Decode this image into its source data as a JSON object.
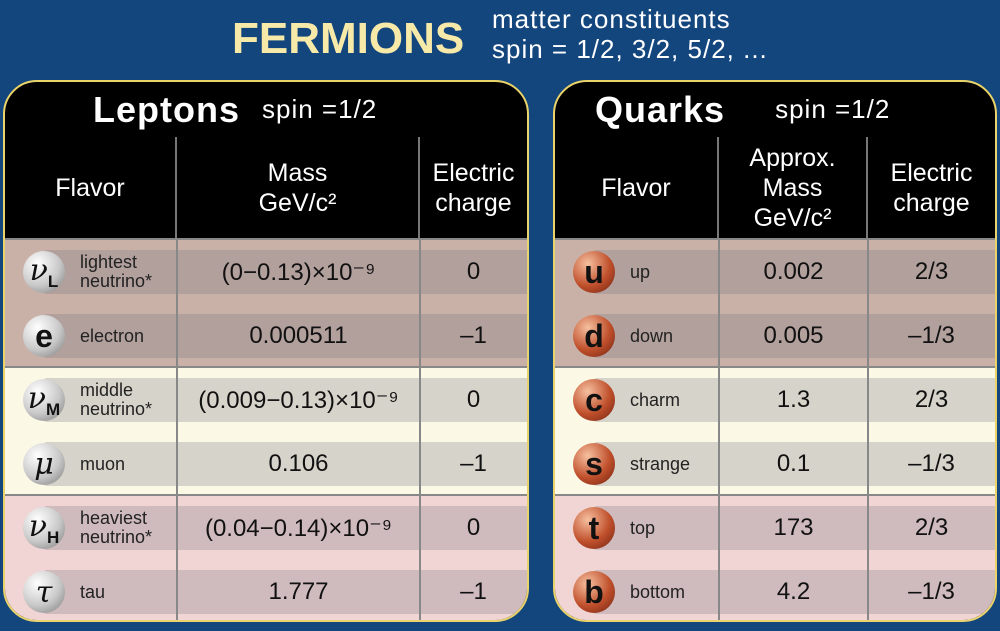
{
  "title": "FERMIONS",
  "subtitle": [
    "matter constituents",
    "spin = 1/2, 3/2, 5/2, ..."
  ],
  "colors": {
    "background": "#14467e",
    "title": "#f7eaa9",
    "group1": "#c9b1a8",
    "group2": "#fbf8e6",
    "group3": "#f1d4d4",
    "panel_border": "#e9d36a"
  },
  "leptons": {
    "name": "Leptons",
    "spin": "spin =1/2",
    "headers": [
      "Flavor",
      "Mass\nGeV/c²",
      "Electric\ncharge"
    ],
    "rows": [
      {
        "symbol": "ν",
        "sub": "L",
        "flavor": "lightest\nneutrino*",
        "mass": "(0−0.13)×10⁻⁹",
        "charge": "0"
      },
      {
        "symbol": "e",
        "sub": "",
        "flavor": "electron",
        "mass": "0.000511",
        "charge": "–1"
      },
      {
        "symbol": "ν",
        "sub": "M",
        "flavor": "middle\nneutrino*",
        "mass": "(0.009−0.13)×10⁻⁹",
        "charge": "0"
      },
      {
        "symbol": "μ",
        "sub": "",
        "flavor": "muon",
        "mass": "0.106",
        "charge": "–1"
      },
      {
        "symbol": "ν",
        "sub": "H",
        "flavor": "heaviest\nneutrino*",
        "mass": "(0.04−0.14)×10⁻⁹",
        "charge": "0"
      },
      {
        "symbol": "τ",
        "sub": "",
        "flavor": "tau",
        "mass": "1.777",
        "charge": "–1"
      }
    ]
  },
  "quarks": {
    "name": "Quarks",
    "spin": "spin =1/2",
    "headers": [
      "Flavor",
      "Approx.\nMass\nGeV/c²",
      "Electric\ncharge"
    ],
    "rows": [
      {
        "symbol": "u",
        "flavor": "up",
        "mass": "0.002",
        "charge": "2/3"
      },
      {
        "symbol": "d",
        "flavor": "down",
        "mass": "0.005",
        "charge": "–1/3"
      },
      {
        "symbol": "c",
        "flavor": "charm",
        "mass": "1.3",
        "charge": "2/3"
      },
      {
        "symbol": "s",
        "flavor": "strange",
        "mass": "0.1",
        "charge": "–1/3"
      },
      {
        "symbol": "t",
        "flavor": "top",
        "mass": "173",
        "charge": "2/3"
      },
      {
        "symbol": "b",
        "flavor": "bottom",
        "mass": "4.2",
        "charge": "–1/3"
      }
    ]
  }
}
